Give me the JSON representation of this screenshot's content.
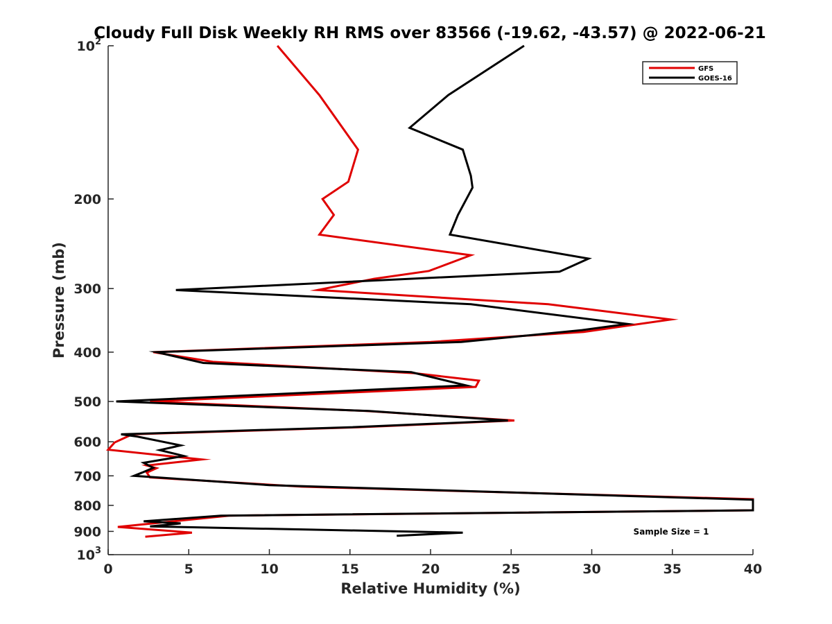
{
  "chart_data": {
    "type": "line",
    "title": "Cloudy Full Disk Weekly RH RMS over 83566 (-19.62, -43.57) @ 2022-06-21",
    "xlabel": "Relative Humidity (%)",
    "ylabel": "Pressure (mb)",
    "xlim": [
      0,
      40
    ],
    "ylim": [
      100,
      1000
    ],
    "y_scale": "log",
    "y_reversed": true,
    "x_ticks": [
      "0",
      "5",
      "10",
      "15",
      "20",
      "25",
      "30",
      "35",
      "40"
    ],
    "y_ticks": [
      {
        "value": 100,
        "base": "10",
        "exp": "2"
      },
      {
        "value": 200,
        "label": "200"
      },
      {
        "value": 300,
        "label": "300"
      },
      {
        "value": 400,
        "label": "400"
      },
      {
        "value": 500,
        "label": "500"
      },
      {
        "value": 600,
        "label": "600"
      },
      {
        "value": 700,
        "label": "700"
      },
      {
        "value": 800,
        "label": "800"
      },
      {
        "value": 900,
        "label": "900"
      },
      {
        "value": 1000,
        "base": "10",
        "exp": "3"
      }
    ],
    "legend_position": "top-right",
    "grid": false,
    "annotation": "Sample Size = 1",
    "series": [
      {
        "name": "GFS",
        "color": "#e00000",
        "points": [
          [
            10.5,
            100
          ],
          [
            13.1,
            125
          ],
          [
            15.5,
            160
          ],
          [
            14.9,
            185
          ],
          [
            13.3,
            200
          ],
          [
            14.0,
            215
          ],
          [
            13.1,
            235
          ],
          [
            22.5,
            258
          ],
          [
            19.9,
            277
          ],
          [
            16.5,
            287
          ],
          [
            13.0,
            302
          ],
          [
            27.3,
            322
          ],
          [
            34.9,
            345
          ],
          [
            29.5,
            365
          ],
          [
            20.0,
            382
          ],
          [
            2.8,
            400
          ],
          [
            6.5,
            418
          ],
          [
            19.0,
            440
          ],
          [
            23.0,
            455
          ],
          [
            22.8,
            468
          ],
          [
            2.6,
            500
          ],
          [
            16.0,
            522
          ],
          [
            25.2,
            545
          ],
          [
            15.5,
            562
          ],
          [
            1.5,
            580
          ],
          [
            0.4,
            602
          ],
          [
            0.0,
            622
          ],
          [
            5.8,
            650
          ],
          [
            2.4,
            668
          ],
          [
            3.0,
            676
          ],
          [
            2.4,
            690
          ],
          [
            2.6,
            705
          ],
          [
            12.0,
            735
          ],
          [
            40.0,
            778
          ],
          [
            40.0,
            818
          ],
          [
            7.5,
            838
          ],
          [
            0.6,
            882
          ],
          [
            5.2,
            905
          ],
          [
            2.3,
            922
          ]
        ]
      },
      {
        "name": "GOES-16",
        "color": "#000000",
        "points": [
          [
            25.8,
            100
          ],
          [
            21.1,
            125
          ],
          [
            18.7,
            145
          ],
          [
            22.0,
            160
          ],
          [
            22.5,
            180
          ],
          [
            22.6,
            190
          ],
          [
            21.7,
            215
          ],
          [
            21.2,
            235
          ],
          [
            29.8,
            262
          ],
          [
            28.0,
            278
          ],
          [
            4.2,
            302
          ],
          [
            22.5,
            322
          ],
          [
            32.2,
            352
          ],
          [
            29.4,
            362
          ],
          [
            21.9,
            382
          ],
          [
            3.0,
            400
          ],
          [
            5.9,
            420
          ],
          [
            18.8,
            438
          ],
          [
            22.2,
            465
          ],
          [
            0.5,
            500
          ],
          [
            16.2,
            522
          ],
          [
            24.8,
            545
          ],
          [
            15.0,
            562
          ],
          [
            0.8,
            580
          ],
          [
            1.8,
            586
          ],
          [
            4.5,
            610
          ],
          [
            3.2,
            623
          ],
          [
            4.7,
            640
          ],
          [
            2.2,
            660
          ],
          [
            2.8,
            675
          ],
          [
            2.1,
            690
          ],
          [
            1.6,
            700
          ],
          [
            10.0,
            730
          ],
          [
            40.0,
            780
          ],
          [
            40.0,
            818
          ],
          [
            7.0,
            838
          ],
          [
            2.2,
            860
          ],
          [
            4.5,
            868
          ],
          [
            2.6,
            880
          ],
          [
            22.0,
            905
          ],
          [
            17.9,
            918
          ]
        ]
      }
    ]
  }
}
